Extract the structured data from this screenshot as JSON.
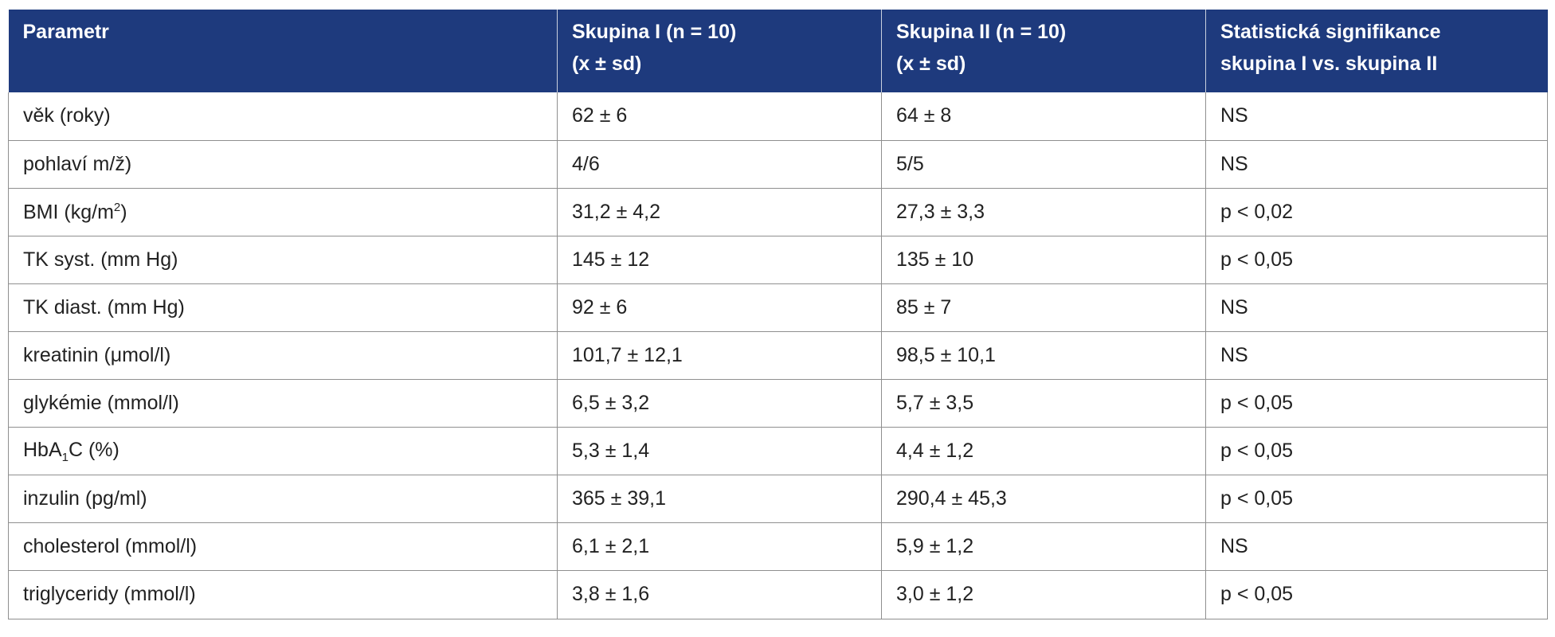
{
  "table": {
    "headers": [
      {
        "line1": "Parametr",
        "line2": ""
      },
      {
        "line1": "Skupina I (n = 10)",
        "line2": "(x ± sd)"
      },
      {
        "line1": "Skupina II (n = 10)",
        "line2": "(x ± sd)"
      },
      {
        "line1": "Statistická signifikance",
        "line2": "skupina I vs. skupina II"
      }
    ],
    "rows": [
      {
        "param": "věk (roky)",
        "g1": "62 ± 6",
        "g2": "64 ± 8",
        "sig": "NS"
      },
      {
        "param": "pohlaví m/ž)",
        "g1": "4/6",
        "g2": "5/5",
        "sig": "NS"
      },
      {
        "param_pre": "BMI (kg/m",
        "param_sup": "2",
        "param_post": ")",
        "g1": "31,2 ± 4,2",
        "g2": "27,3 ± 3,3",
        "sig": "p < 0,02"
      },
      {
        "param": "TK syst. (mm Hg)",
        "g1": "145 ± 12",
        "g2": "135 ± 10",
        "sig": "p < 0,05"
      },
      {
        "param": "TK diast. (mm Hg)",
        "g1": "92 ± 6",
        "g2": "85 ± 7",
        "sig": "NS"
      },
      {
        "param": "kreatinin (μmol/l)",
        "g1": "101,7 ± 12,1",
        "g2": "98,5 ± 10,1",
        "sig": "NS"
      },
      {
        "param": "glykémie (mmol/l)",
        "g1": "6,5 ± 3,2",
        "g2": "5,7 ± 3,5",
        "sig": "p < 0,05"
      },
      {
        "param_pre": "HbA",
        "param_sub": "1",
        "param_post": "C (%)",
        "g1": "5,3 ± 1,4",
        "g2": "4,4 ± 1,2",
        "sig": "p < 0,05"
      },
      {
        "param": "inzulin (pg/ml)",
        "g1": "365 ± 39,1",
        "g2": "290,4 ± 45,3",
        "sig": "p < 0,05"
      },
      {
        "param": "cholesterol (mmol/l)",
        "g1": "6,1 ± 2,1",
        "g2": "5,9 ± 1,2",
        "sig": "NS"
      },
      {
        "param": "triglyceridy (mmol/l)",
        "g1": "3,8 ± 1,6",
        "g2": "3,0 ± 1,2",
        "sig": "p < 0,05"
      }
    ]
  }
}
